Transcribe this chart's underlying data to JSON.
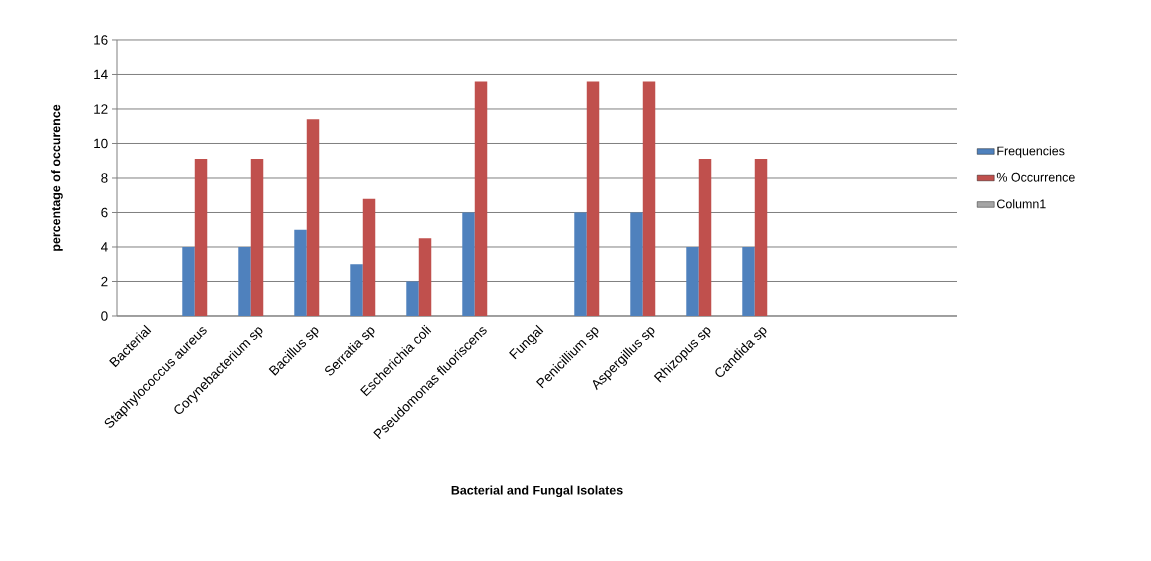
{
  "chart_data": {
    "type": "bar",
    "xlabel": "Bacterial and Fungal Isolates",
    "ylabel": "percentage of occurence",
    "categories": [
      "Bacterial",
      "Staphylococcus aureus",
      "Corynebacterium sp",
      "Bacillus sp",
      "Serratia sp",
      "Escherichia coli",
      "Pseudomonas fluoriscens",
      "Fungal",
      "Penicillium sp",
      "Aspergillus sp",
      "Rhizopus sp",
      "Candida sp",
      null,
      null,
      null
    ],
    "series": [
      {
        "name": "Frequencies",
        "color": "#4f81bd",
        "values": [
          null,
          4,
          4,
          5,
          3,
          2,
          6,
          null,
          6,
          6,
          4,
          4,
          null,
          null,
          null
        ]
      },
      {
        "name": "% Occurrence",
        "color": "#c0504d",
        "values": [
          null,
          9.1,
          9.1,
          11.4,
          6.8,
          4.5,
          13.6,
          null,
          13.6,
          13.6,
          9.1,
          9.1,
          null,
          null,
          null
        ]
      },
      {
        "name": "Column1",
        "color": "#a5a5a5",
        "values": [
          null,
          null,
          null,
          null,
          null,
          null,
          null,
          null,
          null,
          null,
          null,
          null,
          null,
          null,
          null
        ]
      }
    ],
    "ylim": [
      0,
      16
    ],
    "yticks": [
      0,
      2,
      4,
      6,
      8,
      10,
      12,
      14,
      16
    ],
    "grid": "y",
    "legend": "right"
  }
}
